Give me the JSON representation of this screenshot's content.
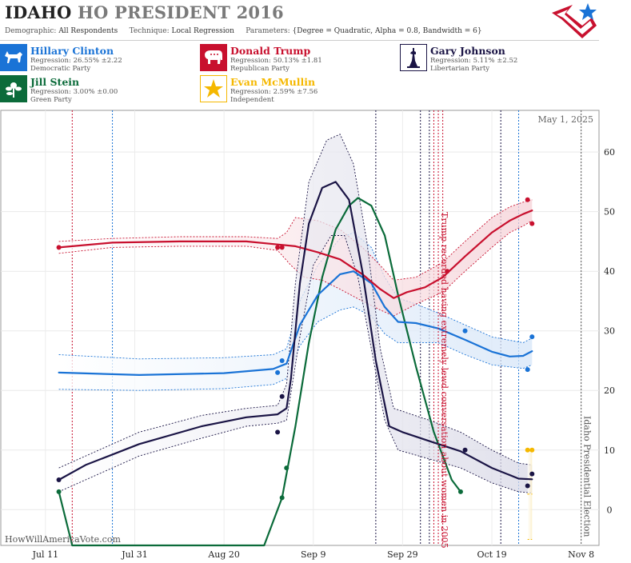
{
  "header": {
    "title_state": "IDAHO",
    "title_rest": "HO PRESIDENT 2016",
    "demographic_label": "Demographic:",
    "demographic_value": "All Respondents",
    "technique_label": "Technique:",
    "technique_value": "Local Regression",
    "parameters_label": "Parameters:",
    "parameters_value": "{Degree = Quadratic, Alpha = 0.8, Bandwidth = 6}"
  },
  "candidates": [
    {
      "name": "Hillary Clinton",
      "regression": "Regression: 26.55% ±2.22",
      "party": "Democratic Party",
      "color": "#1a73d6",
      "icon": "donkey-icon"
    },
    {
      "name": "Donald Trump",
      "regression": "Regression: 50.13% ±1.81",
      "party": "Republican Party",
      "color": "#c8102e",
      "icon": "elephant-icon"
    },
    {
      "name": "Gary Johnson",
      "regression": "Regression: 5.11% ±2.52",
      "party": "Libertarian Party",
      "color": "#1a1445",
      "icon": "liberty-icon"
    },
    {
      "name": "Jill Stein",
      "regression": "Regression: 3.00% ±0.00",
      "party": "Green Party",
      "color": "#0b6b3a",
      "icon": "flower-icon"
    },
    {
      "name": "Evan McMullin",
      "regression": "Regression: 2.59% ±7.56",
      "party": "Independent",
      "color": "#f5b800",
      "icon": "star-icon"
    }
  ],
  "chart_data": {
    "type": "line",
    "date_label": "May 1, 2025",
    "watermark": "HowWillAmericaVote.com",
    "x_ticks": [
      "Jul 11",
      "Jul 31",
      "Aug 20",
      "Sep 9",
      "Sep 29",
      "Oct 19",
      "Nov 8"
    ],
    "x_range": [
      "2016-07-01",
      "2016-11-12"
    ],
    "y_range": [
      -6,
      67
    ],
    "y_ticks": [
      0,
      10,
      20,
      30,
      40,
      50,
      60
    ],
    "grid": true,
    "annotations": [
      {
        "date": "2016-10-07",
        "text": "Trump recorded having extremely lewd conversation about women in 2005",
        "color": "#c8102e"
      },
      {
        "date": "2016-11-08",
        "text": "Idaho Presidential Election",
        "color": "#555555"
      }
    ],
    "poll_dates_dem": [
      "2016-07-26",
      "2016-10-25"
    ],
    "poll_dates_rep": [
      "2016-07-17",
      "2016-10-06",
      "2016-10-08"
    ],
    "poll_dates_lib": [
      "2016-09-23",
      "2016-10-03",
      "2016-10-05",
      "2016-10-21"
    ],
    "series": [
      {
        "name": "Hillary Clinton",
        "color": "#1a73d6",
        "line": [
          [
            "2016-07-14",
            23
          ],
          [
            "2016-08-01",
            22.6
          ],
          [
            "2016-08-20",
            22.9
          ],
          [
            "2016-08-31",
            23.6
          ],
          [
            "2016-09-03",
            24.5
          ],
          [
            "2016-09-06",
            31
          ],
          [
            "2016-09-10",
            36
          ],
          [
            "2016-09-15",
            39.5
          ],
          [
            "2016-09-18",
            40
          ],
          [
            "2016-09-22",
            38
          ],
          [
            "2016-09-25",
            34
          ],
          [
            "2016-09-28",
            31.5
          ],
          [
            "2016-10-02",
            31.3
          ],
          [
            "2016-10-07",
            30.4
          ],
          [
            "2016-10-13",
            28.5
          ],
          [
            "2016-10-19",
            26.5
          ],
          [
            "2016-10-23",
            25.7
          ],
          [
            "2016-10-26",
            25.8
          ],
          [
            "2016-10-28",
            26.6
          ]
        ],
        "upper": [
          [
            "2016-07-14",
            26
          ],
          [
            "2016-08-01",
            25.3
          ],
          [
            "2016-08-20",
            25.5
          ],
          [
            "2016-08-31",
            26
          ],
          [
            "2016-09-03",
            27
          ],
          [
            "2016-09-06",
            35
          ],
          [
            "2016-09-10",
            41
          ],
          [
            "2016-09-15",
            45.5
          ],
          [
            "2016-09-18",
            46.5
          ],
          [
            "2016-09-22",
            44
          ],
          [
            "2016-09-25",
            39
          ],
          [
            "2016-09-28",
            35.5
          ],
          [
            "2016-10-02",
            34.5
          ],
          [
            "2016-10-07",
            33
          ],
          [
            "2016-10-13",
            31
          ],
          [
            "2016-10-19",
            29
          ],
          [
            "2016-10-26",
            28
          ],
          [
            "2016-10-28",
            28.8
          ]
        ],
        "lower": [
          [
            "2016-07-14",
            20.2
          ],
          [
            "2016-08-01",
            20
          ],
          [
            "2016-08-20",
            20.3
          ],
          [
            "2016-08-31",
            21
          ],
          [
            "2016-09-03",
            22
          ],
          [
            "2016-09-06",
            27.5
          ],
          [
            "2016-09-10",
            31.5
          ],
          [
            "2016-09-15",
            33.5
          ],
          [
            "2016-09-18",
            34
          ],
          [
            "2016-09-22",
            32.5
          ],
          [
            "2016-09-25",
            29.5
          ],
          [
            "2016-09-28",
            28
          ],
          [
            "2016-10-02",
            28
          ],
          [
            "2016-10-07",
            28
          ],
          [
            "2016-10-13",
            26
          ],
          [
            "2016-10-19",
            24.3
          ],
          [
            "2016-10-26",
            23.7
          ],
          [
            "2016-10-28",
            24.3
          ]
        ],
        "points": [
          [
            "2016-09-01",
            23
          ],
          [
            "2016-09-02",
            25
          ],
          [
            "2016-10-13",
            30
          ],
          [
            "2016-10-27",
            23.5
          ],
          [
            "2016-10-28",
            29
          ]
        ]
      },
      {
        "name": "Donald Trump",
        "color": "#c8102e",
        "line": [
          [
            "2016-07-14",
            44
          ],
          [
            "2016-07-26",
            44.8
          ],
          [
            "2016-08-10",
            45
          ],
          [
            "2016-08-25",
            45
          ],
          [
            "2016-09-01",
            44.5
          ],
          [
            "2016-09-05",
            44.2
          ],
          [
            "2016-09-10",
            43.2
          ],
          [
            "2016-09-15",
            42
          ],
          [
            "2016-09-20",
            39.5
          ],
          [
            "2016-09-24",
            37
          ],
          [
            "2016-09-27",
            35.5
          ],
          [
            "2016-09-30",
            36.5
          ],
          [
            "2016-10-04",
            37.3
          ],
          [
            "2016-10-08",
            39
          ],
          [
            "2016-10-13",
            42.5
          ],
          [
            "2016-10-19",
            46.5
          ],
          [
            "2016-10-23",
            48.5
          ],
          [
            "2016-10-26",
            49.6
          ],
          [
            "2016-10-28",
            50.2
          ]
        ],
        "upper": [
          [
            "2016-07-14",
            45
          ],
          [
            "2016-07-26",
            45.5
          ],
          [
            "2016-08-10",
            45.8
          ],
          [
            "2016-08-25",
            45.8
          ],
          [
            "2016-09-01",
            45.5
          ],
          [
            "2016-09-03",
            46.5
          ],
          [
            "2016-09-05",
            49
          ],
          [
            "2016-09-10",
            48.5
          ],
          [
            "2016-09-15",
            47
          ],
          [
            "2016-09-20",
            44
          ],
          [
            "2016-09-24",
            41
          ],
          [
            "2016-09-27",
            38.5
          ],
          [
            "2016-10-02",
            39
          ],
          [
            "2016-10-08",
            41.5
          ],
          [
            "2016-10-13",
            45
          ],
          [
            "2016-10-19",
            49
          ],
          [
            "2016-10-23",
            50.8
          ],
          [
            "2016-10-26",
            51.6
          ],
          [
            "2016-10-28",
            52
          ]
        ],
        "lower": [
          [
            "2016-07-14",
            43
          ],
          [
            "2016-07-26",
            44
          ],
          [
            "2016-08-10",
            44.2
          ],
          [
            "2016-08-25",
            44.2
          ],
          [
            "2016-09-01",
            43.5
          ],
          [
            "2016-09-04",
            41
          ],
          [
            "2016-09-07",
            39
          ],
          [
            "2016-09-11",
            38.5
          ],
          [
            "2016-09-15",
            37
          ],
          [
            "2016-09-20",
            35
          ],
          [
            "2016-09-24",
            33.5
          ],
          [
            "2016-09-27",
            32.5
          ],
          [
            "2016-10-02",
            34.5
          ],
          [
            "2016-10-08",
            36.5
          ],
          [
            "2016-10-13",
            40
          ],
          [
            "2016-10-19",
            44
          ],
          [
            "2016-10-23",
            46.5
          ],
          [
            "2016-10-26",
            47.6
          ],
          [
            "2016-10-28",
            48.5
          ]
        ],
        "points": [
          [
            "2016-07-14",
            44
          ],
          [
            "2016-09-01",
            44
          ],
          [
            "2016-09-02",
            44
          ],
          [
            "2016-10-09",
            40
          ],
          [
            "2016-10-27",
            52
          ],
          [
            "2016-10-28",
            48
          ]
        ]
      },
      {
        "name": "Gary Johnson",
        "color": "#1a1445",
        "line": [
          [
            "2016-07-14",
            5
          ],
          [
            "2016-07-20",
            7.5
          ],
          [
            "2016-08-01",
            11
          ],
          [
            "2016-08-15",
            14
          ],
          [
            "2016-08-25",
            15.5
          ],
          [
            "2016-09-01",
            16
          ],
          [
            "2016-09-03",
            17
          ],
          [
            "2016-09-04",
            22
          ],
          [
            "2016-09-06",
            38
          ],
          [
            "2016-09-08",
            48
          ],
          [
            "2016-09-11",
            54
          ],
          [
            "2016-09-14",
            55
          ],
          [
            "2016-09-17",
            52
          ],
          [
            "2016-09-20",
            40
          ],
          [
            "2016-09-23",
            25
          ],
          [
            "2016-09-26",
            14
          ],
          [
            "2016-09-29",
            13
          ],
          [
            "2016-10-05",
            11.5
          ],
          [
            "2016-10-12",
            9.8
          ],
          [
            "2016-10-19",
            7
          ],
          [
            "2016-10-25",
            5.2
          ],
          [
            "2016-10-28",
            5.1
          ]
        ],
        "upper": [
          [
            "2016-07-14",
            7
          ],
          [
            "2016-08-01",
            13
          ],
          [
            "2016-08-15",
            15.8
          ],
          [
            "2016-08-25",
            17
          ],
          [
            "2016-09-01",
            17.5
          ],
          [
            "2016-09-03",
            21
          ],
          [
            "2016-09-05",
            38
          ],
          [
            "2016-09-08",
            55
          ],
          [
            "2016-09-12",
            62
          ],
          [
            "2016-09-15",
            63
          ],
          [
            "2016-09-18",
            58
          ],
          [
            "2016-09-21",
            45
          ],
          [
            "2016-09-24",
            27
          ],
          [
            "2016-09-27",
            17
          ],
          [
            "2016-10-05",
            15
          ],
          [
            "2016-10-12",
            13
          ],
          [
            "2016-10-19",
            10
          ],
          [
            "2016-10-25",
            7.8
          ],
          [
            "2016-10-28",
            7.5
          ]
        ],
        "lower": [
          [
            "2016-07-14",
            3
          ],
          [
            "2016-08-01",
            9
          ],
          [
            "2016-08-15",
            12
          ],
          [
            "2016-08-25",
            14
          ],
          [
            "2016-09-01",
            14.5
          ],
          [
            "2016-09-03",
            15
          ],
          [
            "2016-09-06",
            29
          ],
          [
            "2016-09-09",
            41
          ],
          [
            "2016-09-13",
            46
          ],
          [
            "2016-09-16",
            46
          ],
          [
            "2016-09-19",
            39
          ],
          [
            "2016-09-22",
            27
          ],
          [
            "2016-09-25",
            15
          ],
          [
            "2016-09-28",
            10
          ],
          [
            "2016-10-05",
            8.5
          ],
          [
            "2016-10-12",
            7
          ],
          [
            "2016-10-19",
            4.5
          ],
          [
            "2016-10-25",
            3
          ],
          [
            "2016-10-28",
            2.8
          ]
        ],
        "points": [
          [
            "2016-07-14",
            5
          ],
          [
            "2016-09-01",
            13
          ],
          [
            "2016-09-02",
            19
          ],
          [
            "2016-10-13",
            10
          ],
          [
            "2016-10-27",
            4
          ],
          [
            "2016-10-28",
            6
          ]
        ]
      },
      {
        "name": "Jill Stein",
        "color": "#0b6b3a",
        "line": [
          [
            "2016-07-14",
            3
          ],
          [
            "2016-07-17",
            -6
          ],
          [
            "2016-08-29",
            -6
          ],
          [
            "2016-09-02",
            2
          ],
          [
            "2016-09-05",
            14
          ],
          [
            "2016-09-08",
            28
          ],
          [
            "2016-09-11",
            39
          ],
          [
            "2016-09-14",
            47
          ],
          [
            "2016-09-17",
            51
          ],
          [
            "2016-09-19",
            52.3
          ],
          [
            "2016-09-22",
            51
          ],
          [
            "2016-09-25",
            46
          ],
          [
            "2016-09-28",
            36
          ],
          [
            "2016-10-02",
            24
          ],
          [
            "2016-10-06",
            13
          ],
          [
            "2016-10-10",
            5
          ],
          [
            "2016-10-12",
            3
          ]
        ],
        "points": [
          [
            "2016-07-14",
            3
          ],
          [
            "2016-09-02",
            2
          ],
          [
            "2016-09-03",
            7
          ],
          [
            "2016-10-12",
            3
          ]
        ]
      },
      {
        "name": "Evan McMullin",
        "color": "#f5b800",
        "line": [
          [
            "2016-10-27",
            2.6
          ],
          [
            "2016-10-28",
            2.6
          ]
        ],
        "upper": [
          [
            "2016-10-27",
            10.2
          ],
          [
            "2016-10-28",
            10.2
          ]
        ],
        "lower": [
          [
            "2016-10-27",
            -5
          ],
          [
            "2016-10-28",
            -5
          ]
        ],
        "points": [
          [
            "2016-10-27",
            10
          ],
          [
            "2016-10-28",
            10
          ]
        ]
      }
    ]
  }
}
